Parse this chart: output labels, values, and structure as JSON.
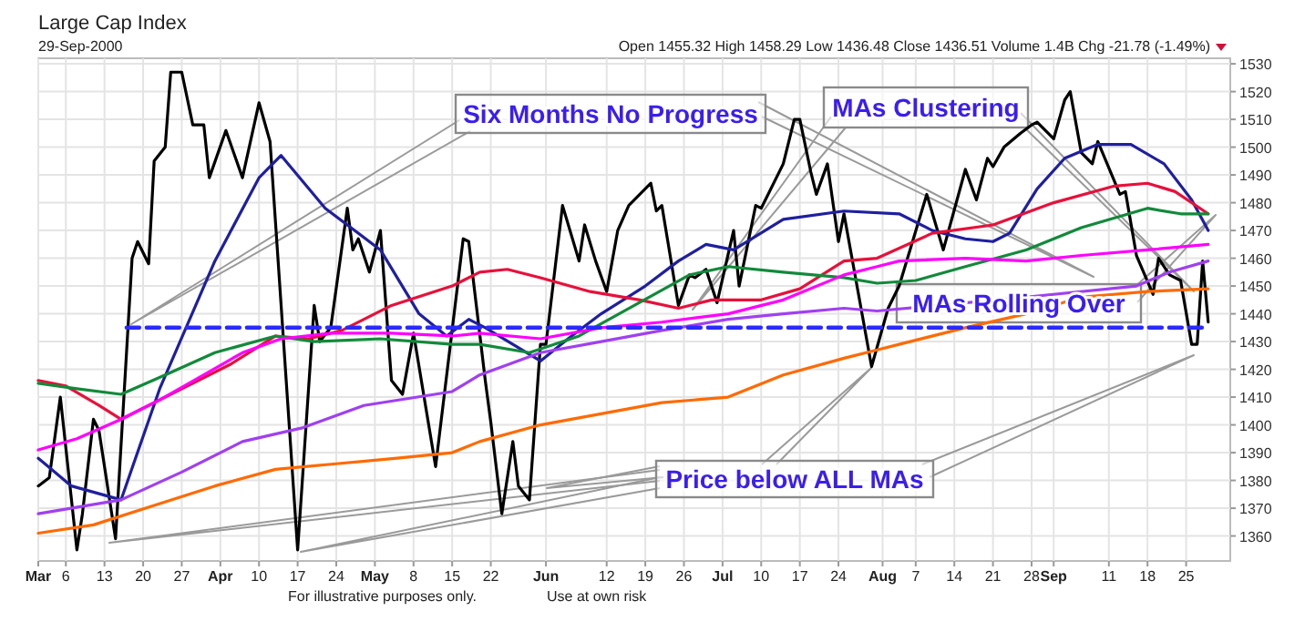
{
  "chart_data": {
    "type": "line",
    "title": "Large Cap Index",
    "subtitle": "29-Sep-2000",
    "annotations": [
      "Open 1455.32 High 1458.29 Low 1436.48 Close 1436.51 Volume 1.4B Chg -21.78 (-1.49%)",
      "Six Months No Progress",
      "MAs Clustering",
      "MAs Rolling Over",
      "Price below ALL MAs",
      "For illustrative purposes only.",
      "Use at own risk"
    ],
    "xlim": [
      "2000-03-01",
      "2000-10-03"
    ],
    "xticks": [
      {
        "value": "2000-03-01",
        "label": "Mar"
      },
      {
        "value": "2000-03-06",
        "label": "6"
      },
      {
        "value": "2000-03-13",
        "label": "13"
      },
      {
        "value": "2000-03-20",
        "label": "20"
      },
      {
        "value": "2000-03-27",
        "label": "27"
      },
      {
        "value": "2000-04-03",
        "label": "Apr"
      },
      {
        "value": "2000-04-10",
        "label": "10"
      },
      {
        "value": "2000-04-17",
        "label": "17"
      },
      {
        "value": "2000-04-24",
        "label": "24"
      },
      {
        "value": "2000-05-01",
        "label": "May"
      },
      {
        "value": "2000-05-08",
        "label": "8"
      },
      {
        "value": "2000-05-15",
        "label": "15"
      },
      {
        "value": "2000-05-22",
        "label": "22"
      },
      {
        "value": "2000-06-01",
        "label": "Jun"
      },
      {
        "value": "2000-06-12",
        "label": "12"
      },
      {
        "value": "2000-06-19",
        "label": "19"
      },
      {
        "value": "2000-06-26",
        "label": "26"
      },
      {
        "value": "2000-07-03",
        "label": "Jul"
      },
      {
        "value": "2000-07-10",
        "label": "10"
      },
      {
        "value": "2000-07-17",
        "label": "17"
      },
      {
        "value": "2000-07-24",
        "label": "24"
      },
      {
        "value": "2000-08-01",
        "label": "Aug"
      },
      {
        "value": "2000-08-07",
        "label": "7"
      },
      {
        "value": "2000-08-14",
        "label": "14"
      },
      {
        "value": "2000-08-21",
        "label": "21"
      },
      {
        "value": "2000-08-28",
        "label": "28"
      },
      {
        "value": "2000-09-01",
        "label": "Sep"
      },
      {
        "value": "2000-09-11",
        "label": "11"
      },
      {
        "value": "2000-09-18",
        "label": "18"
      },
      {
        "value": "2000-09-25",
        "label": "25"
      }
    ],
    "ylim": [
      1351,
      1532
    ],
    "yticks": [
      1360,
      1370,
      1380,
      1390,
      1400,
      1410,
      1420,
      1430,
      1440,
      1450,
      1460,
      1470,
      1480,
      1490,
      1500,
      1510,
      1520,
      1530
    ],
    "grid": true,
    "series": [
      {
        "color": "#000000",
        "x": [
          "2000-03-01",
          "2000-03-03",
          "2000-03-05",
          "2000-03-08",
          "2000-03-09",
          "2000-03-11",
          "2000-03-12",
          "2000-03-15",
          "2000-03-18",
          "2000-03-19",
          "2000-03-21",
          "2000-03-22",
          "2000-03-24",
          "2000-03-25",
          "2000-03-27",
          "2000-03-29",
          "2000-03-31",
          "2000-04-01",
          "2000-04-04",
          "2000-04-07",
          "2000-04-10",
          "2000-04-12",
          "2000-04-17",
          "2000-04-20",
          "2000-04-21",
          "2000-04-23",
          "2000-04-26",
          "2000-04-27",
          "2000-04-28",
          "2000-04-30",
          "2000-05-02",
          "2000-05-04",
          "2000-05-06",
          "2000-05-08",
          "2000-05-12",
          "2000-05-17",
          "2000-05-18",
          "2000-05-21",
          "2000-05-22",
          "2000-05-24",
          "2000-05-26",
          "2000-05-27",
          "2000-05-29",
          "2000-05-31",
          "2000-06-01",
          "2000-06-04",
          "2000-06-07",
          "2000-06-08",
          "2000-06-10",
          "2000-06-12",
          "2000-06-14",
          "2000-06-16",
          "2000-06-20",
          "2000-06-21",
          "2000-06-22",
          "2000-06-25",
          "2000-06-27",
          "2000-06-28",
          "2000-06-30",
          "2000-07-02",
          "2000-07-05",
          "2000-07-06",
          "2000-07-09",
          "2000-07-10",
          "2000-07-14",
          "2000-07-16",
          "2000-07-17",
          "2000-07-19",
          "2000-07-20",
          "2000-07-22",
          "2000-07-24",
          "2000-07-25",
          "2000-07-30",
          "2000-08-02",
          "2000-08-04",
          "2000-08-09",
          "2000-08-12",
          "2000-08-16",
          "2000-08-18",
          "2000-08-20",
          "2000-08-21",
          "2000-08-23",
          "2000-08-26",
          "2000-08-28",
          "2000-08-29",
          "2000-09-01",
          "2000-09-03",
          "2000-09-04",
          "2000-09-06",
          "2000-09-08",
          "2000-09-09",
          "2000-09-13",
          "2000-09-14",
          "2000-09-16",
          "2000-09-19",
          "2000-09-20",
          "2000-09-22",
          "2000-09-24",
          "2000-09-26",
          "2000-09-27",
          "2000-09-28",
          "2000-09-29"
        ],
        "values": [
          1378,
          1381,
          1410,
          1355,
          1368,
          1402,
          1398,
          1359,
          1460,
          1466,
          1458,
          1495,
          1500,
          1527,
          1527,
          1508,
          1508,
          1489,
          1506,
          1489,
          1516,
          1502,
          1355,
          1443,
          1430,
          1435,
          1478,
          1463,
          1467,
          1455,
          1470,
          1416,
          1411,
          1433,
          1385,
          1467,
          1466,
          1416,
          1401,
          1368,
          1394,
          1378,
          1373,
          1429,
          1429,
          1479,
          1459,
          1472,
          1459,
          1448,
          1470,
          1479,
          1487,
          1477,
          1479,
          1443,
          1454,
          1453,
          1456,
          1444,
          1470,
          1450,
          1479,
          1478,
          1494,
          1510,
          1510,
          1491,
          1483,
          1494,
          1466,
          1476,
          1421,
          1442,
          1450,
          1483,
          1463,
          1492,
          1481,
          1496,
          1493,
          1500,
          1505,
          1508,
          1509,
          1503,
          1517,
          1520,
          1498,
          1494,
          1502,
          1483,
          1484,
          1461,
          1447,
          1460,
          1454,
          1452,
          1429,
          1429,
          1459,
          1437
        ]
      },
      {
        "color": "#1f1fa0",
        "x": [
          "2000-03-01",
          "2000-03-07",
          "2000-03-16",
          "2000-03-23",
          "2000-04-02",
          "2000-04-10",
          "2000-04-14",
          "2000-04-22",
          "2000-05-02",
          "2000-05-09",
          "2000-05-14",
          "2000-05-18",
          "2000-05-21",
          "2000-05-26",
          "2000-05-31",
          "2000-06-05",
          "2000-06-11",
          "2000-06-19",
          "2000-06-25",
          "2000-06-30",
          "2000-07-05",
          "2000-07-14",
          "2000-07-25",
          "2000-08-04",
          "2000-08-10",
          "2000-08-16",
          "2000-08-21",
          "2000-08-24",
          "2000-08-29",
          "2000-09-03",
          "2000-09-09",
          "2000-09-15",
          "2000-09-21",
          "2000-09-26",
          "2000-09-29"
        ],
        "values": [
          1388,
          1378,
          1373,
          1413,
          1459,
          1489,
          1497,
          1478,
          1463,
          1440,
          1432,
          1438,
          1435,
          1429,
          1423,
          1431,
          1440,
          1450,
          1459,
          1465,
          1463,
          1474,
          1477,
          1476,
          1470,
          1467,
          1466,
          1469,
          1485,
          1496,
          1501,
          1501,
          1494,
          1481,
          1470
        ]
      },
      {
        "color": "#e8103a",
        "x": [
          "2000-03-01",
          "2000-03-06",
          "2000-03-12",
          "2000-03-16",
          "2000-03-25",
          "2000-04-05",
          "2000-04-13",
          "2000-04-19",
          "2000-04-25",
          "2000-05-04",
          "2000-05-15",
          "2000-05-20",
          "2000-05-25",
          "2000-05-31",
          "2000-06-09",
          "2000-06-18",
          "2000-06-25",
          "2000-07-01",
          "2000-07-10",
          "2000-07-17",
          "2000-07-25",
          "2000-07-31",
          "2000-08-10",
          "2000-08-21",
          "2000-09-01",
          "2000-09-12",
          "2000-09-18",
          "2000-09-23",
          "2000-09-29"
        ],
        "values": [
          1416,
          1414,
          1407,
          1402,
          1411,
          1422,
          1432,
          1431,
          1434,
          1443,
          1450,
          1455,
          1456,
          1453,
          1448,
          1445,
          1442,
          1445,
          1445,
          1449,
          1459,
          1460,
          1469,
          1472,
          1480,
          1486,
          1487,
          1484,
          1476
        ]
      },
      {
        "color": "#118a3a",
        "x": [
          "2000-03-01",
          "2000-03-08",
          "2000-03-16",
          "2000-03-24",
          "2000-04-02",
          "2000-04-13",
          "2000-04-20",
          "2000-05-02",
          "2000-05-15",
          "2000-05-20",
          "2000-05-29",
          "2000-06-07",
          "2000-06-17",
          "2000-06-27",
          "2000-07-04",
          "2000-07-14",
          "2000-07-25",
          "2000-07-31",
          "2000-08-07",
          "2000-08-16",
          "2000-08-27",
          "2000-09-06",
          "2000-09-18",
          "2000-09-24",
          "2000-09-29"
        ],
        "values": [
          1415,
          1413,
          1411,
          1418,
          1426,
          1432,
          1430,
          1431,
          1429,
          1429,
          1426,
          1432,
          1443,
          1454,
          1457,
          1455,
          1453,
          1451,
          1452,
          1457,
          1463,
          1471,
          1478,
          1476,
          1476
        ]
      },
      {
        "color": "#ff00ff",
        "x": [
          "2000-03-01",
          "2000-03-08",
          "2000-03-16",
          "2000-03-23",
          "2000-03-31",
          "2000-04-07",
          "2000-04-14",
          "2000-04-23",
          "2000-05-04",
          "2000-05-15",
          "2000-05-20",
          "2000-05-31",
          "2000-06-11",
          "2000-06-22",
          "2000-07-04",
          "2000-07-14",
          "2000-07-25",
          "2000-07-31",
          "2000-08-04",
          "2000-08-16",
          "2000-08-27",
          "2000-09-06",
          "2000-09-18",
          "2000-09-29"
        ],
        "values": [
          1391,
          1395,
          1402,
          1409,
          1418,
          1426,
          1431,
          1433,
          1433,
          1432,
          1433,
          1431,
          1435,
          1437,
          1440,
          1445,
          1454,
          1457,
          1459,
          1460,
          1459,
          1461,
          1463,
          1465
        ]
      },
      {
        "color": "#a040f0",
        "x": [
          "2000-03-01",
          "2000-03-16",
          "2000-03-27",
          "2000-04-07",
          "2000-04-18",
          "2000-04-29",
          "2000-05-15",
          "2000-05-20",
          "2000-05-31",
          "2000-06-11",
          "2000-06-22",
          "2000-07-04",
          "2000-07-14",
          "2000-07-25",
          "2000-07-31",
          "2000-08-27",
          "2000-09-16",
          "2000-09-22",
          "2000-09-29"
        ],
        "values": [
          1368,
          1373,
          1383,
          1394,
          1399,
          1407,
          1412,
          1418,
          1426,
          1430,
          1434,
          1438,
          1440,
          1442,
          1441,
          1446,
          1450,
          1455,
          1459
        ]
      },
      {
        "color": "#ff6a00",
        "x": [
          "2000-03-01",
          "2000-03-11",
          "2000-03-22",
          "2000-04-02",
          "2000-04-13",
          "2000-04-24",
          "2000-05-05",
          "2000-05-15",
          "2000-05-20",
          "2000-05-31",
          "2000-06-11",
          "2000-06-22",
          "2000-07-04",
          "2000-07-14",
          "2000-07-25",
          "2000-07-31",
          "2000-08-04",
          "2000-08-16",
          "2000-08-27",
          "2000-09-06",
          "2000-09-18",
          "2000-09-29"
        ],
        "values": [
          1361,
          1364,
          1371,
          1378,
          1384,
          1386,
          1388,
          1390,
          1394,
          1400,
          1404,
          1408,
          1410,
          1418,
          1424,
          1427,
          1429,
          1435,
          1440,
          1446,
          1448,
          1449
        ]
      },
      {
        "color": "#2a2aff",
        "line_style": "dashed",
        "x": [
          "2000-03-17",
          "2000-09-29"
        ],
        "values": [
          1435,
          1435
        ]
      }
    ]
  }
}
